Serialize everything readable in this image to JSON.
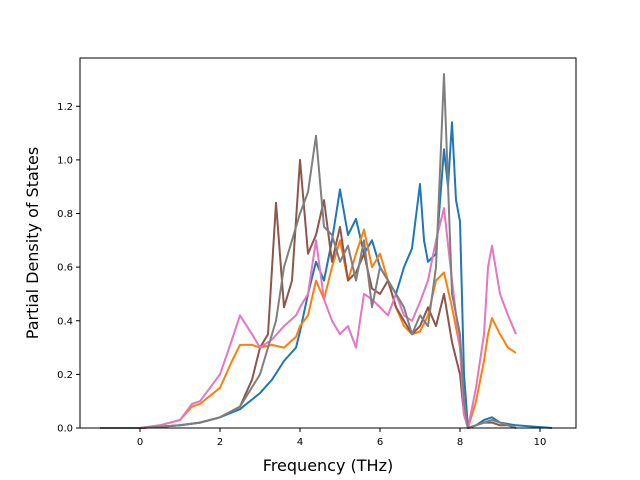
{
  "chart_data": {
    "type": "line",
    "title": "",
    "xlabel": "Frequency (THz)",
    "ylabel": "Partial Density of States",
    "xlim": [
      -1.5,
      10.9
    ],
    "ylim": [
      0,
      1.38
    ],
    "xticks": [
      0,
      2,
      4,
      6,
      8,
      10
    ],
    "yticks": [
      0.0,
      0.2,
      0.4,
      0.6,
      0.8,
      1.0,
      1.2
    ],
    "xtick_labels": [
      "0",
      "2",
      "4",
      "6",
      "8",
      "10"
    ],
    "ytick_labels": [
      "0.0",
      "0.2",
      "0.4",
      "0.6",
      "0.8",
      "1.0",
      "1.2"
    ],
    "grid": false,
    "legend": "none",
    "series": [
      {
        "color": "#1f77b4",
        "x": [
          -1.0,
          0.0,
          0.5,
          1.0,
          1.5,
          2.0,
          2.5,
          3.0,
          3.3,
          3.6,
          3.9,
          4.0,
          4.2,
          4.4,
          4.6,
          4.8,
          5.0,
          5.2,
          5.4,
          5.6,
          5.8,
          6.0,
          6.2,
          6.4,
          6.6,
          6.8,
          7.0,
          7.1,
          7.2,
          7.4,
          7.6,
          7.7,
          7.8,
          7.9,
          8.0,
          8.1,
          8.2,
          8.4,
          8.6,
          8.8,
          9.0,
          9.2,
          9.4,
          10.3
        ],
        "y": [
          0.0,
          0.0,
          0.005,
          0.01,
          0.02,
          0.04,
          0.07,
          0.13,
          0.18,
          0.25,
          0.3,
          0.36,
          0.5,
          0.62,
          0.55,
          0.7,
          0.89,
          0.72,
          0.78,
          0.65,
          0.7,
          0.6,
          0.55,
          0.5,
          0.6,
          0.67,
          0.91,
          0.7,
          0.62,
          0.65,
          1.04,
          0.9,
          1.14,
          0.85,
          0.77,
          0.2,
          0.0,
          0.01,
          0.03,
          0.04,
          0.02,
          0.015,
          0.01,
          0.0
        ]
      },
      {
        "color": "#ff7f0e",
        "x": [
          -1.0,
          0.0,
          0.5,
          1.0,
          1.3,
          1.5,
          2.0,
          2.3,
          2.5,
          2.8,
          3.0,
          3.3,
          3.6,
          3.9,
          4.0,
          4.2,
          4.4,
          4.6,
          4.8,
          5.0,
          5.2,
          5.4,
          5.6,
          5.8,
          6.0,
          6.2,
          6.4,
          6.6,
          6.8,
          7.0,
          7.2,
          7.4,
          7.6,
          7.8,
          8.0,
          8.1,
          8.2,
          8.4,
          8.6,
          8.7,
          8.8,
          9.0,
          9.2,
          9.4
        ],
        "y": [
          0.0,
          0.0,
          0.01,
          0.03,
          0.08,
          0.09,
          0.15,
          0.25,
          0.31,
          0.31,
          0.3,
          0.31,
          0.3,
          0.34,
          0.38,
          0.42,
          0.55,
          0.48,
          0.6,
          0.7,
          0.55,
          0.65,
          0.74,
          0.6,
          0.65,
          0.55,
          0.45,
          0.38,
          0.35,
          0.36,
          0.42,
          0.55,
          0.58,
          0.45,
          0.3,
          0.1,
          0.0,
          0.1,
          0.25,
          0.35,
          0.41,
          0.35,
          0.3,
          0.28
        ]
      },
      {
        "color": "#8c564b",
        "x": [
          -1.0,
          0.0,
          0.5,
          1.0,
          1.5,
          2.0,
          2.5,
          2.8,
          3.0,
          3.2,
          3.4,
          3.6,
          3.8,
          4.0,
          4.2,
          4.4,
          4.6,
          4.8,
          5.0,
          5.2,
          5.4,
          5.6,
          5.8,
          6.0,
          6.2,
          6.4,
          6.6,
          6.8,
          7.0,
          7.2,
          7.4,
          7.6,
          7.8,
          8.0,
          8.1,
          8.2,
          8.4,
          8.6,
          8.8,
          9.0,
          9.2,
          9.4
        ],
        "y": [
          0.0,
          0.0,
          0.005,
          0.01,
          0.02,
          0.04,
          0.08,
          0.18,
          0.3,
          0.35,
          0.84,
          0.45,
          0.55,
          1.0,
          0.65,
          0.72,
          0.85,
          0.62,
          0.75,
          0.55,
          0.58,
          0.65,
          0.52,
          0.5,
          0.55,
          0.45,
          0.4,
          0.35,
          0.38,
          0.45,
          0.38,
          0.5,
          0.32,
          0.2,
          0.05,
          0.0,
          0.01,
          0.02,
          0.02,
          0.01,
          0.01,
          0.0
        ]
      },
      {
        "color": "#e377c2",
        "x": [
          -1.0,
          0.0,
          0.5,
          1.0,
          1.3,
          1.5,
          2.0,
          2.3,
          2.5,
          2.8,
          3.0,
          3.3,
          3.6,
          3.9,
          4.0,
          4.2,
          4.4,
          4.6,
          4.8,
          5.0,
          5.2,
          5.4,
          5.6,
          5.8,
          6.0,
          6.2,
          6.4,
          6.6,
          6.8,
          7.0,
          7.2,
          7.4,
          7.6,
          7.8,
          8.0,
          8.1,
          8.2,
          8.4,
          8.6,
          8.7,
          8.8,
          9.0,
          9.2,
          9.4
        ],
        "y": [
          0.0,
          0.0,
          0.01,
          0.03,
          0.09,
          0.1,
          0.2,
          0.33,
          0.42,
          0.35,
          0.3,
          0.33,
          0.38,
          0.42,
          0.45,
          0.5,
          0.7,
          0.48,
          0.4,
          0.35,
          0.38,
          0.3,
          0.5,
          0.48,
          0.45,
          0.42,
          0.5,
          0.42,
          0.4,
          0.47,
          0.55,
          0.7,
          0.82,
          0.55,
          0.3,
          0.05,
          0.0,
          0.15,
          0.35,
          0.6,
          0.68,
          0.5,
          0.42,
          0.35
        ]
      },
      {
        "color": "#7f7f7f",
        "x": [
          -1.0,
          0.0,
          0.5,
          1.0,
          1.5,
          2.0,
          2.5,
          3.0,
          3.2,
          3.4,
          3.6,
          3.8,
          4.0,
          4.2,
          4.4,
          4.6,
          4.8,
          5.0,
          5.2,
          5.4,
          5.6,
          5.8,
          6.0,
          6.2,
          6.4,
          6.6,
          6.8,
          7.0,
          7.2,
          7.4,
          7.6,
          7.8,
          8.0,
          8.1,
          8.2,
          8.4,
          8.6,
          8.8,
          9.0,
          9.2,
          9.4
        ],
        "y": [
          0.0,
          0.0,
          0.005,
          0.01,
          0.02,
          0.04,
          0.08,
          0.2,
          0.3,
          0.4,
          0.6,
          0.7,
          0.8,
          0.88,
          1.09,
          0.75,
          0.72,
          0.62,
          0.68,
          0.55,
          0.7,
          0.45,
          0.6,
          0.55,
          0.5,
          0.45,
          0.35,
          0.42,
          0.38,
          0.6,
          1.32,
          0.5,
          0.35,
          0.1,
          0.0,
          0.01,
          0.02,
          0.03,
          0.02,
          0.01,
          0.0
        ]
      }
    ]
  }
}
